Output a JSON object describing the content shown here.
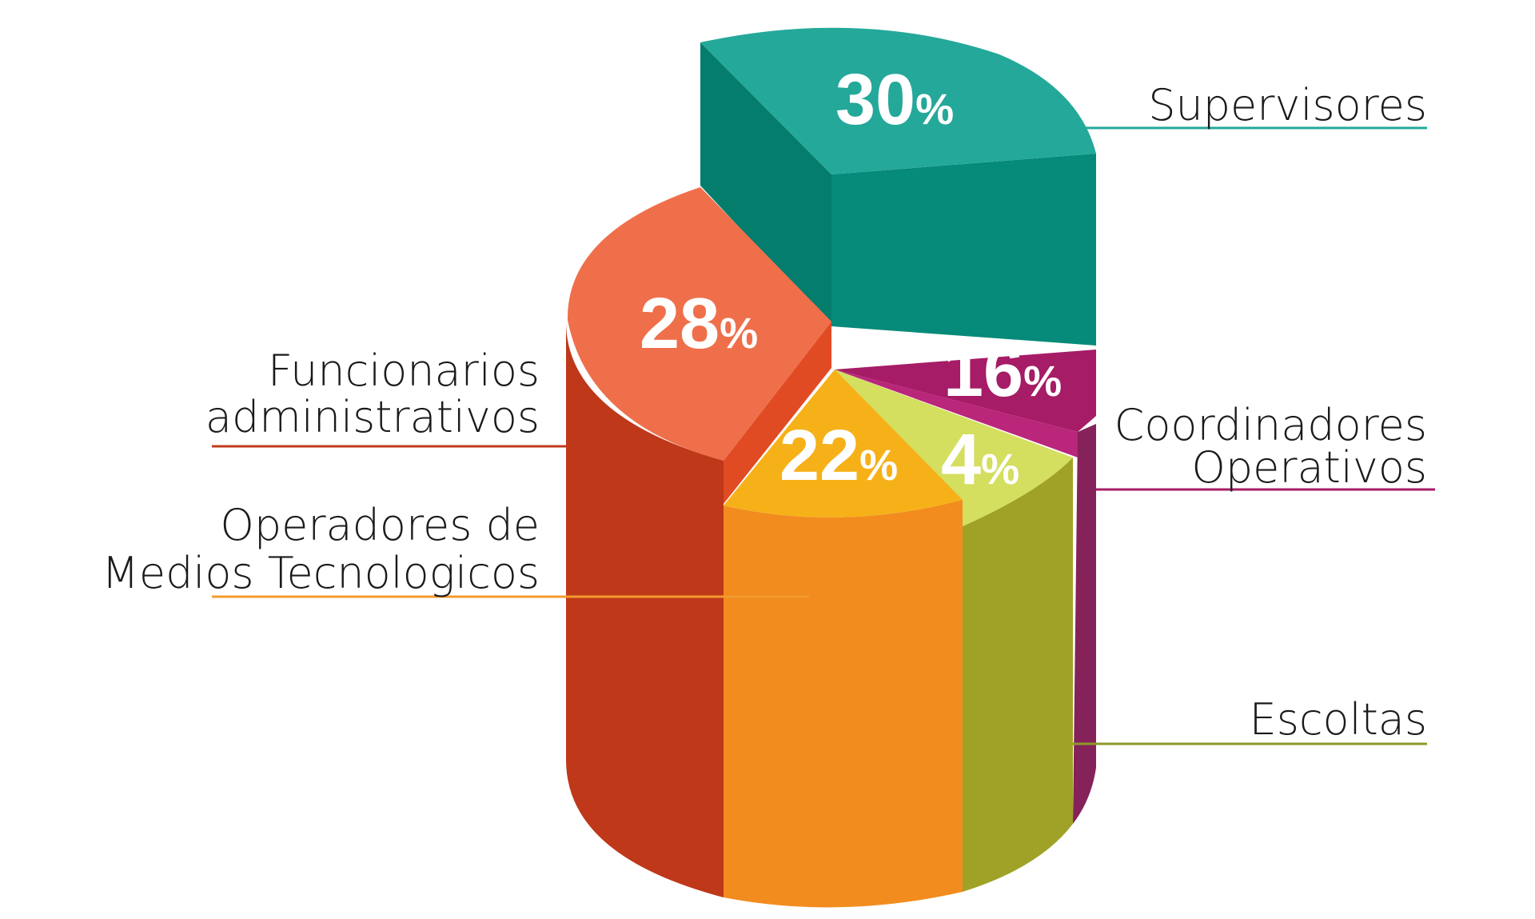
{
  "chart_data": {
    "type": "pie",
    "title": "",
    "style": "3d-exploded-cylinder",
    "slices": [
      {
        "label": "Supervisores",
        "value": 30,
        "pct_text": "30",
        "pct_sign": "%",
        "color": "#24A89A"
      },
      {
        "label": "Coordinadores Operativos",
        "value": 16,
        "pct_text": "16",
        "pct_sign": "%",
        "color": "#A61C66"
      },
      {
        "label": "Escoltas",
        "value": 4,
        "pct_text": "4",
        "pct_sign": "%",
        "color": "#D4DE5F"
      },
      {
        "label": "Operadores de Medios Tecnologicos",
        "value": 22,
        "pct_text": "22",
        "pct_sign": "%",
        "color": "#F6B119"
      },
      {
        "label": "Funcionarios administrativos",
        "value": 28,
        "pct_text": "28",
        "pct_sign": "%",
        "color": "#EF6F4B"
      }
    ],
    "legend": {
      "placement": "leader-lines",
      "entries": [
        {
          "lines": [
            "Supervisores"
          ],
          "line_color": "#24A89A"
        },
        {
          "lines": [
            "Coordinadores",
            "Operativos"
          ],
          "line_color": "#A61C66"
        },
        {
          "lines": [
            "Escoltas"
          ],
          "line_color": "#8E9A2A"
        },
        {
          "lines": [
            "Operadores de",
            "Medios Tecnologicos"
          ],
          "line_color": "#F39A2E"
        },
        {
          "lines": [
            "Funcionarios",
            "administrativos"
          ],
          "line_color": "#C0391A"
        }
      ]
    }
  }
}
